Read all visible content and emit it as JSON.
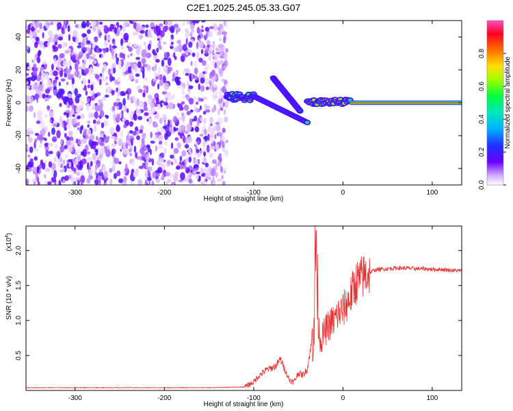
{
  "figure": {
    "title": "C2E1.2025.245.05.33.G07"
  },
  "chart_data": [
    {
      "type": "heatmap",
      "title": "C2E1.2025.245.05.33.G07",
      "xlabel": "Height of straight line (km)",
      "ylabel": "Frequency (Hz)",
      "xlim": [
        -355,
        133
      ],
      "ylim": [
        -50,
        50
      ],
      "x_ticks": [
        -300,
        -200,
        -100,
        0,
        100
      ],
      "x_tick_labels": [
        "-300",
        "-200",
        "-100",
        "0",
        "100"
      ],
      "y_ticks": [
        -40,
        -20,
        0,
        20,
        40
      ],
      "y_tick_labels": [
        "-40",
        "-20",
        "0",
        "20",
        "40"
      ],
      "colorbar": {
        "label": "Normalized spectral amplitude",
        "range": [
          0,
          1
        ],
        "ticks": [
          0,
          0.2,
          0.4,
          0.6,
          0.8
        ],
        "tick_labels": [
          "0.0",
          "0.2",
          "0.4",
          "0.6",
          "0.8"
        ],
        "colormap": [
          "#ffffff",
          "#c080ff",
          "#6a00ff",
          "#2020ff",
          "#00c8ff",
          "#00ff60",
          "#c8ff00",
          "#ff8000",
          "#ff0020",
          "#ff60c0"
        ]
      },
      "regions": [
        {
          "x_range": [
            -355,
            -130
          ],
          "y_range": [
            -50,
            50
          ],
          "amplitude": [
            0.02,
            0.2
          ],
          "pattern": "noise"
        },
        {
          "x_range": [
            -130,
            -100
          ],
          "y_range": [
            0,
            7
          ],
          "amplitude": [
            0.3,
            0.6
          ],
          "pattern": "tone"
        },
        {
          "x_range": [
            -100,
            -40
          ],
          "y_range": [
            -12,
            4
          ],
          "amplitude": [
            0.3,
            0.6
          ],
          "pattern": "descending tone"
        },
        {
          "x_range": [
            -78,
            -48
          ],
          "y_range": [
            -5,
            15
          ],
          "amplitude": [
            0.2,
            0.5
          ],
          "pattern": "descending branch"
        },
        {
          "x_range": [
            -40,
            8
          ],
          "y_range": [
            -2,
            3
          ],
          "amplitude": [
            0.4,
            0.7
          ],
          "pattern": "tone"
        },
        {
          "x_range": [
            8,
            133
          ],
          "y_range": [
            -1,
            1
          ],
          "amplitude": [
            0.8,
            1.0
          ],
          "pattern": "steady tone"
        }
      ]
    },
    {
      "type": "line",
      "xlabel": "Height of straight line (km)",
      "ylabel": "SNR (10 * v/v)",
      "y_scale_label": "(x10",
      "y_scale_exp": "4",
      "xlim": [
        -355,
        133
      ],
      "ylim": [
        0,
        2.35
      ],
      "x_ticks": [
        -300,
        -200,
        -100,
        0,
        100
      ],
      "x_tick_labels": [
        "-300",
        "-200",
        "-100",
        "0",
        "100"
      ],
      "y_ticks": [
        0.5,
        1.0,
        1.5,
        2.0
      ],
      "y_tick_labels": [
        "0.5",
        "1.0",
        "1.5",
        "2.0"
      ],
      "line_color": "#e83030",
      "series": [
        {
          "x": [
            -355,
            -300,
            -250,
            -200,
            -150,
            -110,
            -100,
            -95,
            -90,
            -85,
            -80,
            -75,
            -70,
            -65,
            -60,
            -55,
            -50,
            -45,
            -40,
            -35,
            -32,
            -30,
            -28,
            -25,
            -20,
            -15,
            -10,
            -5,
            0,
            5,
            10,
            15,
            20,
            25,
            30,
            35,
            40,
            50,
            60,
            70,
            80,
            90,
            100,
            110,
            120,
            133
          ],
          "y": [
            0.04,
            0.04,
            0.04,
            0.04,
            0.04,
            0.05,
            0.12,
            0.2,
            0.25,
            0.3,
            0.32,
            0.35,
            0.45,
            0.3,
            0.15,
            0.12,
            0.25,
            0.22,
            0.3,
            0.7,
            1.2,
            2.3,
            1.0,
            0.7,
            0.85,
            0.95,
            1.0,
            1.1,
            1.15,
            1.25,
            1.4,
            1.55,
            1.6,
            1.65,
            1.68,
            1.72,
            1.73,
            1.74,
            1.75,
            1.75,
            1.74,
            1.74,
            1.73,
            1.73,
            1.72,
            1.71
          ]
        }
      ]
    }
  ]
}
